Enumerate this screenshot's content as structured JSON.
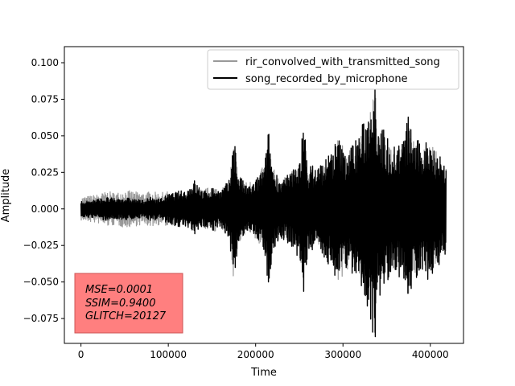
{
  "chart_data": {
    "type": "line",
    "title": "",
    "xlabel": "Time",
    "ylabel": "Amplitude",
    "xlim": [
      -19000,
      438000
    ],
    "ylim": [
      -0.092,
      0.111
    ],
    "x_ticks": [
      0,
      100000,
      200000,
      300000,
      400000
    ],
    "x_tick_labels": [
      "0",
      "100000",
      "200000",
      "300000",
      "400000"
    ],
    "y_ticks": [
      -0.075,
      -0.05,
      -0.025,
      0.0,
      0.025,
      0.05,
      0.075,
      0.1
    ],
    "y_tick_labels": [
      "−0.075",
      "−0.050",
      "−0.025",
      "0.000",
      "0.025",
      "0.050",
      "0.075",
      "0.100"
    ],
    "grid": false,
    "legend": "top-right",
    "series": [
      {
        "name": "rir_convolved_with_transmitted_song",
        "color": "#999999",
        "envelope": [
          [
            0,
            0.008
          ],
          [
            10000,
            0.009
          ],
          [
            20000,
            0.01
          ],
          [
            30000,
            0.012
          ],
          [
            40000,
            0.011
          ],
          [
            50000,
            0.013
          ],
          [
            60000,
            0.012
          ],
          [
            70000,
            0.011
          ],
          [
            80000,
            0.012
          ],
          [
            90000,
            0.011
          ],
          [
            100000,
            0.012
          ],
          [
            110000,
            0.01
          ],
          [
            120000,
            0.011
          ],
          [
            130000,
            0.015
          ],
          [
            140000,
            0.013
          ],
          [
            150000,
            0.016
          ],
          [
            160000,
            0.014
          ],
          [
            170000,
            0.02
          ],
          [
            175000,
            0.05
          ],
          [
            180000,
            0.025
          ],
          [
            190000,
            0.018
          ],
          [
            200000,
            0.022
          ],
          [
            210000,
            0.03
          ],
          [
            215000,
            0.045
          ],
          [
            220000,
            0.028
          ],
          [
            230000,
            0.02
          ],
          [
            240000,
            0.025
          ],
          [
            250000,
            0.032
          ],
          [
            255000,
            0.05
          ],
          [
            260000,
            0.03
          ],
          [
            270000,
            0.025
          ],
          [
            280000,
            0.03
          ],
          [
            290000,
            0.04
          ],
          [
            295000,
            0.055
          ],
          [
            300000,
            0.045
          ],
          [
            310000,
            0.04
          ],
          [
            320000,
            0.05
          ],
          [
            330000,
            0.06
          ],
          [
            335000,
            0.095
          ],
          [
            340000,
            0.06
          ],
          [
            350000,
            0.045
          ],
          [
            360000,
            0.04
          ],
          [
            370000,
            0.045
          ],
          [
            375000,
            0.06
          ],
          [
            380000,
            0.05
          ],
          [
            390000,
            0.04
          ],
          [
            400000,
            0.045
          ],
          [
            410000,
            0.038
          ],
          [
            418000,
            0.03
          ]
        ]
      },
      {
        "name": "song_recorded_by_microphone",
        "color": "#000000",
        "envelope": [
          [
            0,
            0.005
          ],
          [
            10000,
            0.006
          ],
          [
            20000,
            0.007
          ],
          [
            30000,
            0.008
          ],
          [
            40000,
            0.007
          ],
          [
            50000,
            0.008
          ],
          [
            60000,
            0.007
          ],
          [
            70000,
            0.006
          ],
          [
            80000,
            0.008
          ],
          [
            90000,
            0.007
          ],
          [
            100000,
            0.01
          ],
          [
            110000,
            0.012
          ],
          [
            120000,
            0.013
          ],
          [
            130000,
            0.02
          ],
          [
            140000,
            0.012
          ],
          [
            150000,
            0.015
          ],
          [
            160000,
            0.013
          ],
          [
            170000,
            0.02
          ],
          [
            175000,
            0.055
          ],
          [
            180000,
            0.025
          ],
          [
            190000,
            0.015
          ],
          [
            200000,
            0.02
          ],
          [
            210000,
            0.03
          ],
          [
            215000,
            0.055
          ],
          [
            220000,
            0.028
          ],
          [
            230000,
            0.02
          ],
          [
            240000,
            0.025
          ],
          [
            250000,
            0.035
          ],
          [
            255000,
            0.06
          ],
          [
            260000,
            0.03
          ],
          [
            270000,
            0.03
          ],
          [
            280000,
            0.035
          ],
          [
            290000,
            0.045
          ],
          [
            295000,
            0.05
          ],
          [
            300000,
            0.04
          ],
          [
            310000,
            0.045
          ],
          [
            320000,
            0.055
          ],
          [
            330000,
            0.07
          ],
          [
            335000,
            0.105
          ],
          [
            340000,
            0.065
          ],
          [
            350000,
            0.05
          ],
          [
            360000,
            0.045
          ],
          [
            370000,
            0.05
          ],
          [
            375000,
            0.066
          ],
          [
            380000,
            0.05
          ],
          [
            390000,
            0.045
          ],
          [
            400000,
            0.05
          ],
          [
            410000,
            0.04
          ],
          [
            418000,
            0.03
          ]
        ]
      }
    ],
    "annotation": {
      "lines": [
        "MSE=0.0001",
        "SSIM=0.9400",
        "GLITCH=20127"
      ],
      "background": "#ff7f7f",
      "placement": "bottom-left"
    }
  }
}
